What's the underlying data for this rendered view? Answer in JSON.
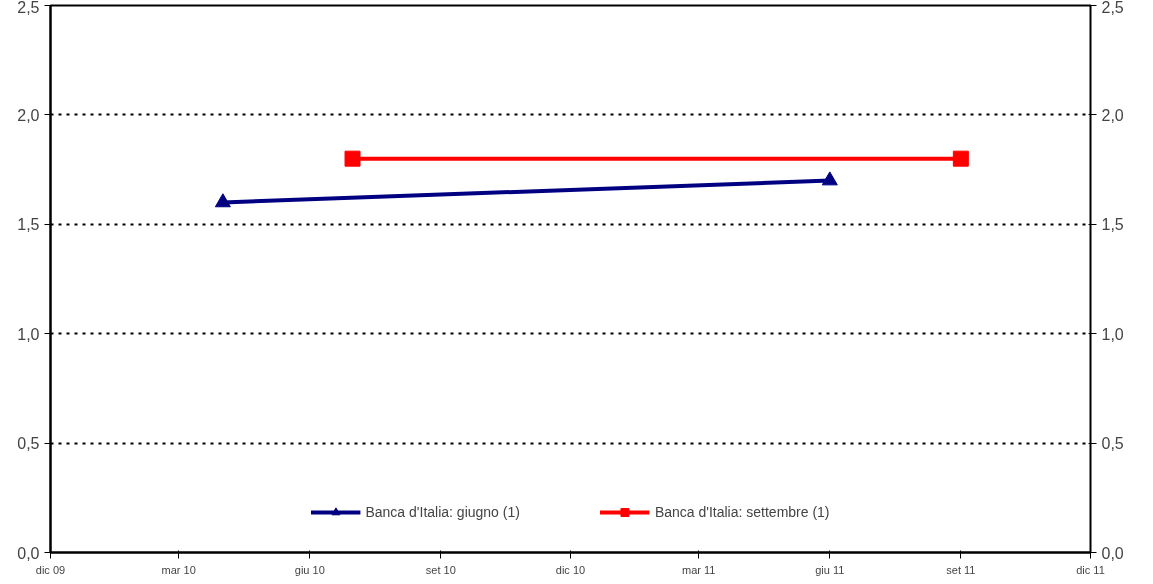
{
  "chart_data": {
    "type": "line",
    "series": [
      {
        "name": "Banca d'Italia: giugno (1)",
        "color": "#000080",
        "values": [
          1.6,
          1.7
        ],
        "marker": "triangle",
        "x": [
          "2010-04",
          "2011-06"
        ]
      },
      {
        "name": "Banca d'Italia: settembre (1)",
        "color": "#ff0000",
        "values": [
          1.8,
          1.8
        ],
        "marker": "square",
        "x": [
          "2010-07",
          "2011-09"
        ]
      }
    ],
    "xlim": [
      "2009-12",
      "2011-12"
    ],
    "xticks": [
      {
        "value": "2009-12",
        "label": "dic 09"
      },
      {
        "value": "2010-03",
        "label": "mar 10"
      },
      {
        "value": "2010-06",
        "label": "giu 10"
      },
      {
        "value": "2010-09",
        "label": "set 10"
      },
      {
        "value": "2010-12",
        "label": "dic 10"
      },
      {
        "value": "2011-03",
        "label": "mar 11"
      },
      {
        "value": "2011-06",
        "label": "giu 11"
      },
      {
        "value": "2011-09",
        "label": "set 11"
      },
      {
        "value": "2011-12",
        "label": "dic 11"
      }
    ],
    "ylim": [
      0,
      2.5
    ],
    "yticks": [
      {
        "value": 0,
        "label": "0,0"
      },
      {
        "value": 0.5,
        "label": "0,5"
      },
      {
        "value": 1,
        "label": "1,0"
      },
      {
        "value": 1.5,
        "label": "1,5"
      },
      {
        "value": 2,
        "label": "2,0"
      },
      {
        "value": 2.5,
        "label": "2,5"
      }
    ],
    "y2lim": [
      0,
      2.5
    ],
    "y2ticks": [
      {
        "value": 0,
        "label": "0,0"
      },
      {
        "value": 0.5,
        "label": "0,5"
      },
      {
        "value": 1,
        "label": "1,0"
      },
      {
        "value": 1.5,
        "label": "1,5"
      },
      {
        "value": 2,
        "label": "2,0"
      },
      {
        "value": 2.5,
        "label": "2,5"
      }
    ],
    "grid": "y",
    "legend": "bottom",
    "line_style": "solid"
  }
}
